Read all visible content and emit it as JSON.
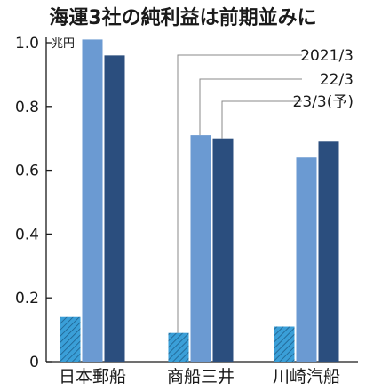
{
  "chart_data": {
    "type": "bar",
    "title": "海運3社の純利益は前期並みに",
    "unit": "兆円",
    "ylim": [
      0,
      1.0
    ],
    "yticks": [
      0,
      0.2,
      0.4,
      0.6,
      0.8,
      1.0
    ],
    "ytick_labels": [
      "0",
      "0.2",
      "0.4",
      "0.6",
      "0.8",
      "1.0"
    ],
    "categories": [
      "日本郵船",
      "商船三井",
      "川崎汽船"
    ],
    "series": [
      {
        "name": "2021/3",
        "values": [
          0.14,
          0.09,
          0.11
        ],
        "color": "#3a9fd8",
        "pattern": "hatch"
      },
      {
        "name": "22/3",
        "values": [
          1.01,
          0.71,
          0.64
        ],
        "color": "#6b9ad2"
      },
      {
        "name": "23/3(予)",
        "values": [
          0.96,
          0.7,
          0.69
        ],
        "color": "#2b4e7e"
      }
    ],
    "grid": false,
    "legend": "leader-lines-top-right"
  }
}
